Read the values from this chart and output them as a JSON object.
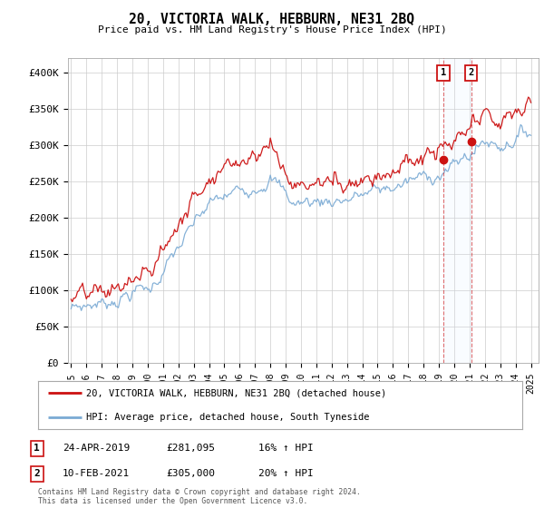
{
  "title": "20, VICTORIA WALK, HEBBURN, NE31 2BQ",
  "subtitle": "Price paid vs. HM Land Registry's House Price Index (HPI)",
  "ylabel_ticks": [
    "£0",
    "£50K",
    "£100K",
    "£150K",
    "£200K",
    "£250K",
    "£300K",
    "£350K",
    "£400K"
  ],
  "ylim": [
    0,
    420000
  ],
  "xlim_start": 1994.8,
  "xlim_end": 2025.5,
  "xticks": [
    1995,
    1996,
    1997,
    1998,
    1999,
    2000,
    2001,
    2002,
    2003,
    2004,
    2005,
    2006,
    2007,
    2008,
    2009,
    2010,
    2011,
    2012,
    2013,
    2014,
    2015,
    2016,
    2017,
    2018,
    2019,
    2020,
    2021,
    2022,
    2023,
    2024,
    2025
  ],
  "hpi_color": "#7aaad4",
  "price_color": "#cc1111",
  "shade_color": "#ddeeff",
  "marker1_date": 2019.3,
  "marker1_price": 281095,
  "marker2_date": 2021.1,
  "marker2_price": 305000,
  "legend_line1": "20, VICTORIA WALK, HEBBURN, NE31 2BQ (detached house)",
  "legend_line2": "HPI: Average price, detached house, South Tyneside",
  "table_row1": [
    "1",
    "24-APR-2019",
    "£281,095",
    "16% ↑ HPI"
  ],
  "table_row2": [
    "2",
    "10-FEB-2021",
    "£305,000",
    "20% ↑ HPI"
  ],
  "footer": "Contains HM Land Registry data © Crown copyright and database right 2024.\nThis data is licensed under the Open Government Licence v3.0.",
  "background_color": "#ffffff",
  "grid_color": "#cccccc"
}
